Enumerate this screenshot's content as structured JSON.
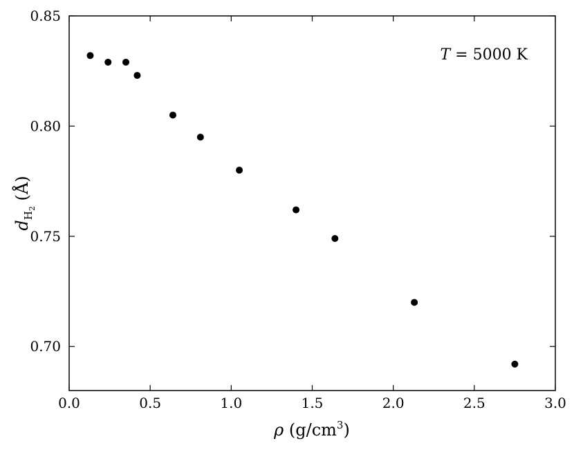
{
  "chart_data": {
    "type": "scatter",
    "title": "",
    "xlabel": "ρ (g/cm³)",
    "ylabel": "d_H2 (Å)",
    "xlabel_parts": {
      "symbol": "ρ",
      "unit_prefix": " (g/cm",
      "sup": "3",
      "unit_suffix": ")"
    },
    "ylabel_parts": {
      "symbol": "d",
      "sub": "H",
      "subsub": "2",
      "unit": " (Å)"
    },
    "xlim": [
      0.0,
      3.0
    ],
    "ylim": [
      0.68,
      0.85
    ],
    "x_ticks": [
      "0.0",
      "0.5",
      "1.0",
      "1.5",
      "2.0",
      "2.5",
      "3.0"
    ],
    "y_ticks": [
      "0.70",
      "0.75",
      "0.80",
      "0.85"
    ],
    "grid": false,
    "annotation": {
      "symbol": "T",
      "rest": " = 5000 K"
    },
    "marker_color": "#000000",
    "points": [
      {
        "x": 0.13,
        "y": 0.832
      },
      {
        "x": 0.24,
        "y": 0.829
      },
      {
        "x": 0.35,
        "y": 0.829
      },
      {
        "x": 0.42,
        "y": 0.823
      },
      {
        "x": 0.64,
        "y": 0.805
      },
      {
        "x": 0.81,
        "y": 0.795
      },
      {
        "x": 1.05,
        "y": 0.78
      },
      {
        "x": 1.4,
        "y": 0.762
      },
      {
        "x": 1.64,
        "y": 0.749
      },
      {
        "x": 2.13,
        "y": 0.72
      },
      {
        "x": 2.75,
        "y": 0.692
      }
    ]
  }
}
